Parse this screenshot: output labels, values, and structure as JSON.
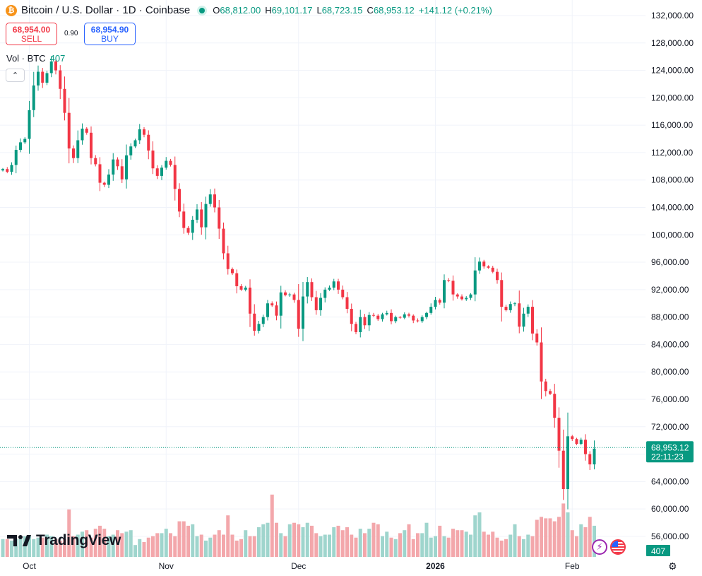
{
  "header": {
    "coin_icon": "bitcoin-icon",
    "coin_glyph": "₿",
    "symbol_title": "Bitcoin / U.S. Dollar · 1D · Coinbase",
    "ohlc": [
      {
        "k": "O",
        "v": "68,812.00"
      },
      {
        "k": "H",
        "v": "69,101.17"
      },
      {
        "k": "L",
        "v": "68,723.15"
      },
      {
        "k": "C",
        "v": "68,953.12"
      }
    ],
    "change": "+141.12 (+0.21%)"
  },
  "trade": {
    "sell_price": "68,954.00",
    "sell_label": "SELL",
    "spread": "0.90",
    "buy_price": "68,954.90",
    "buy_label": "BUY"
  },
  "volume_label": {
    "name": "Vol · BTC",
    "value": "407"
  },
  "branding": "TradingView",
  "colors": {
    "up": "#089981",
    "down": "#f23645",
    "up_vol": "#9fd5cd",
    "down_vol": "#f3a7ab",
    "grid": "#f0f3fa"
  },
  "chart_data": {
    "type": "candlestick",
    "title": "Bitcoin / U.S. Dollar · 1D · Coinbase",
    "y_ticks": [
      56000,
      60000,
      64000,
      68000,
      72000,
      76000,
      80000,
      84000,
      88000,
      92000,
      96000,
      100000,
      104000,
      108000,
      112000,
      116000,
      120000,
      124000,
      128000,
      132000
    ],
    "y_tick_labels": [
      "56,000.00",
      "60,000.00",
      "64,000.00",
      "68,000.00",
      "72,000.00",
      "76,000.00",
      "80,000.00",
      "84,000.00",
      "88,000.00",
      "92,000.00",
      "96,000.00",
      "100,000.00",
      "104,000.00",
      "108,000.00",
      "112,000.00",
      "116,000.00",
      "120,000.00",
      "124,000.00",
      "128,000.00",
      "132,000.00"
    ],
    "ylim": [
      53300,
      134000
    ],
    "x_labels": [
      {
        "text": "Oct",
        "index": 6,
        "bold": false
      },
      {
        "text": "Nov",
        "index": 37,
        "bold": false
      },
      {
        "text": "Dec",
        "index": 67,
        "bold": false
      },
      {
        "text": "2026",
        "index": 98,
        "bold": true
      },
      {
        "text": "Feb",
        "index": 129,
        "bold": false
      }
    ],
    "last_price": 68953.12,
    "last_price_label": "68,953.12",
    "countdown": "22:11:23",
    "last_volume_label": "407",
    "closes": [
      109600,
      109200,
      110200,
      112400,
      113500,
      114000,
      118200,
      121800,
      123800,
      122200,
      123600,
      125300,
      124000,
      121300,
      117800,
      112600,
      111200,
      113800,
      115500,
      114900,
      111200,
      110300,
      107600,
      107300,
      108800,
      111000,
      110000,
      108100,
      111600,
      112900,
      113800,
      115400,
      114600,
      112300,
      109700,
      108600,
      109800,
      110800,
      110200,
      106700,
      103400,
      101000,
      100300,
      102200,
      103700,
      101100,
      104500,
      105900,
      104000,
      100900,
      97300,
      95000,
      94400,
      92500,
      92000,
      92300,
      88500,
      86000,
      87000,
      88000,
      90000,
      89700,
      88200,
      91600,
      91200,
      91300,
      90500,
      86300,
      91000,
      93100,
      90900,
      89000,
      90800,
      92000,
      92300,
      93200,
      92000,
      90900,
      89200,
      87000,
      85800,
      88000,
      86800,
      88300,
      88200,
      87700,
      88400,
      88600,
      87400,
      88000,
      87900,
      88400,
      88200,
      87500,
      87400,
      88000,
      88600,
      89500,
      90500,
      90100,
      93400,
      93300,
      91300,
      91000,
      90600,
      90800,
      91300,
      94800,
      96100,
      95400,
      95200,
      94600,
      93400,
      89500,
      89000,
      89900,
      90000,
      86600,
      88500,
      89500,
      85600,
      84300,
      78600,
      77200,
      76800,
      73300,
      68500,
      62900,
      70600,
      70200,
      69500,
      70100,
      68000,
      66500,
      68800
    ],
    "volumes": [
      12,
      12,
      11,
      12,
      12,
      14,
      14,
      12,
      13,
      13,
      15,
      14,
      12,
      11,
      12,
      32,
      14,
      15,
      17,
      18,
      13,
      19,
      21,
      19,
      14,
      15,
      18,
      16,
      17,
      18,
      8,
      12,
      10,
      13,
      14,
      16,
      16,
      19,
      16,
      14,
      24,
      24,
      21,
      22,
      14,
      15,
      11,
      13,
      15,
      18,
      15,
      28,
      15,
      11,
      12,
      18,
      14,
      14,
      20,
      22,
      23,
      42,
      23,
      16,
      14,
      22,
      23,
      22,
      20,
      23,
      21,
      16,
      14,
      15,
      15,
      20,
      21,
      18,
      20,
      15,
      13,
      19,
      16,
      19,
      23,
      22,
      14,
      17,
      13,
      12,
      16,
      18,
      22,
      12,
      16,
      16,
      23,
      13,
      14,
      21,
      14,
      13,
      19,
      18,
      18,
      17,
      15,
      28,
      30,
      17,
      15,
      17,
      13,
      11,
      12,
      15,
      22,
      14,
      12,
      15,
      14,
      25,
      27,
      26,
      26,
      24,
      27,
      36,
      30,
      18,
      14,
      22,
      20,
      27,
      21,
      18
    ]
  }
}
